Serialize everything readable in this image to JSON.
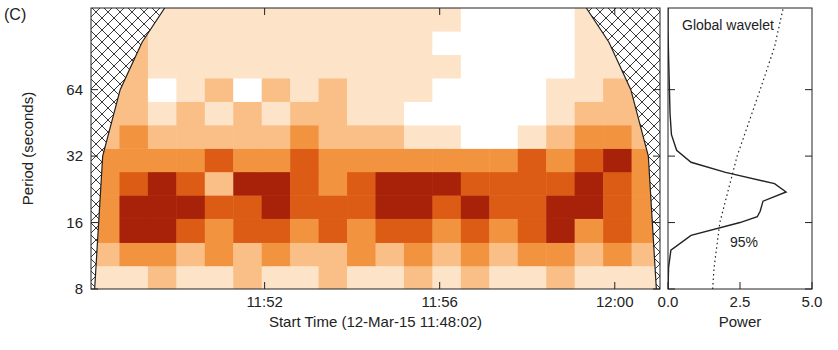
{
  "chart_data": {
    "type": "heatmap",
    "panel_label": "(C)",
    "ylabel": "Period (seconds)",
    "xlabel": "Start Time (12-Mar-15 11:48:02)",
    "log": "y",
    "xlim": [
      0,
      780
    ],
    "ylim": [
      8,
      150
    ],
    "xticks": [
      {
        "value": 238,
        "label": "11:52"
      },
      {
        "value": 478,
        "label": "11:56"
      },
      {
        "value": 718,
        "label": "12:00"
      }
    ],
    "yticks": [
      8,
      16,
      32,
      64
    ],
    "x_edges": [
      0,
      39,
      78,
      117,
      156,
      195,
      234,
      273,
      312,
      351,
      390,
      429,
      468,
      507,
      546,
      585,
      624,
      663,
      702,
      741,
      780
    ],
    "y_edges": [
      8,
      10.2,
      13,
      16.7,
      21.3,
      27.2,
      34.7,
      44.3,
      56.6,
      72.3,
      92.3,
      117.9,
      150
    ],
    "colors": [
      "#ffffff",
      "#fde3c8",
      "#f9bf86",
      "#f2933f",
      "#dc5c16",
      "#a8220a"
    ],
    "cells": [
      [
        1,
        1,
        2,
        1,
        1,
        2,
        1,
        1,
        2,
        1,
        1,
        2,
        1,
        2,
        1,
        1,
        2,
        1,
        1,
        1
      ],
      [
        2,
        3,
        3,
        2,
        3,
        2,
        3,
        2,
        2,
        3,
        2,
        3,
        2,
        3,
        2,
        3,
        3,
        2,
        3,
        2
      ],
      [
        3,
        5,
        5,
        4,
        3,
        4,
        4,
        3,
        4,
        3,
        4,
        4,
        3,
        4,
        3,
        4,
        5,
        3,
        4,
        3
      ],
      [
        3,
        5,
        5,
        5,
        4,
        4,
        5,
        4,
        4,
        4,
        5,
        5,
        4,
        5,
        4,
        4,
        5,
        5,
        4,
        3
      ],
      [
        3,
        4,
        5,
        4,
        2,
        5,
        5,
        4,
        3,
        4,
        5,
        5,
        5,
        4,
        4,
        4,
        4,
        5,
        4,
        3
      ],
      [
        3,
        3,
        3,
        3,
        4,
        3,
        3,
        4,
        3,
        3,
        3,
        3,
        3,
        3,
        3,
        4,
        3,
        4,
        5,
        3
      ],
      [
        2,
        3,
        2,
        2,
        2,
        2,
        2,
        3,
        2,
        2,
        2,
        1,
        1,
        0,
        0,
        1,
        2,
        3,
        3,
        2
      ],
      [
        2,
        2,
        1,
        2,
        1,
        2,
        1,
        2,
        2,
        1,
        1,
        0,
        0,
        0,
        0,
        0,
        1,
        2,
        2,
        2
      ],
      [
        2,
        2,
        0,
        1,
        2,
        0,
        2,
        1,
        2,
        1,
        1,
        1,
        0,
        0,
        0,
        0,
        1,
        1,
        2,
        2
      ],
      [
        2,
        2,
        1,
        1,
        1,
        1,
        1,
        1,
        1,
        1,
        1,
        1,
        1,
        0,
        0,
        0,
        0,
        1,
        1,
        2
      ],
      [
        1,
        2,
        1,
        1,
        1,
        1,
        1,
        1,
        1,
        1,
        1,
        1,
        0,
        0,
        0,
        0,
        0,
        1,
        1,
        1
      ],
      [
        1,
        1,
        1,
        1,
        1,
        1,
        1,
        1,
        1,
        1,
        1,
        1,
        1,
        0,
        0,
        0,
        0,
        1,
        1,
        1
      ]
    ],
    "coi": [
      {
        "x": [
          5,
          16,
          40,
          70,
          101
        ],
        "y": [
          8,
          32,
          64,
          105,
          150
        ]
      },
      {
        "x": [
          679,
          710,
          740,
          764,
          775
        ],
        "y": [
          150,
          105,
          64,
          32,
          8
        ]
      }
    ],
    "global_wavelet": {
      "title": "Global wavelet",
      "xlabel": "Power",
      "xlim": [
        0,
        5
      ],
      "xticks": [
        {
          "value": 0,
          "label": "0.0"
        },
        {
          "value": 2.5,
          "label": "2.5"
        },
        {
          "value": 5,
          "label": "5.0"
        }
      ],
      "period": [
        8,
        10,
        12,
        14,
        16,
        17,
        18,
        20,
        22,
        24,
        27,
        30,
        34,
        40,
        50,
        64,
        90,
        120,
        150
      ],
      "power": [
        0,
        0.02,
        0.1,
        0.8,
        2.5,
        3.1,
        3.2,
        3.3,
        4.1,
        3.7,
        2.0,
        0.8,
        0.3,
        0.12,
        0.07,
        0.05,
        0.02,
        0,
        0
      ],
      "significance": {
        "label": "95%",
        "period": [
          8,
          10,
          16,
          32,
          64,
          100,
          150
        ],
        "power": [
          1.55,
          1.6,
          1.8,
          2.4,
          3.2,
          3.7,
          4.0
        ]
      }
    }
  }
}
